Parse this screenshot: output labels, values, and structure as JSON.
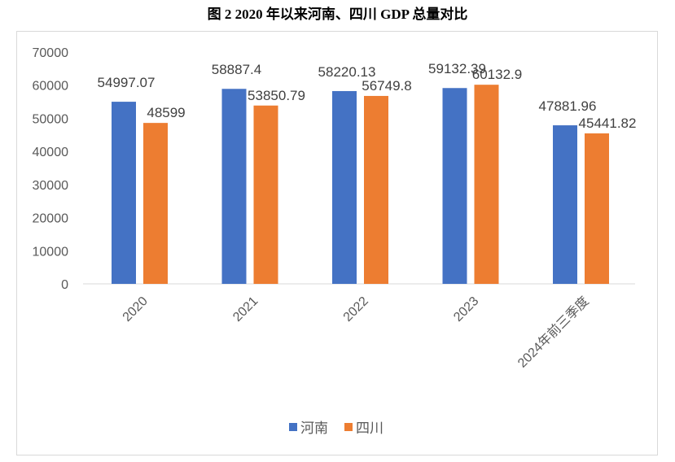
{
  "chart_data": {
    "type": "bar",
    "title": "图 2 2020 年以来河南、四川 GDP 总量对比",
    "categories": [
      "2020",
      "2021",
      "2022",
      "2023",
      "2024年前三季度"
    ],
    "series": [
      {
        "name": "河南",
        "color": "#4472c4",
        "values": [
          54997.07,
          58887.4,
          58220.13,
          59132.39,
          47881.96
        ]
      },
      {
        "name": "四川",
        "color": "#ed7d31",
        "values": [
          48599,
          53850.79,
          56749.8,
          60132.9,
          45441.82
        ]
      }
    ],
    "ylim": [
      0,
      70000
    ],
    "yticks": [
      0,
      10000,
      20000,
      30000,
      40000,
      50000,
      60000,
      70000
    ],
    "grid": false,
    "legend": "bottom"
  }
}
